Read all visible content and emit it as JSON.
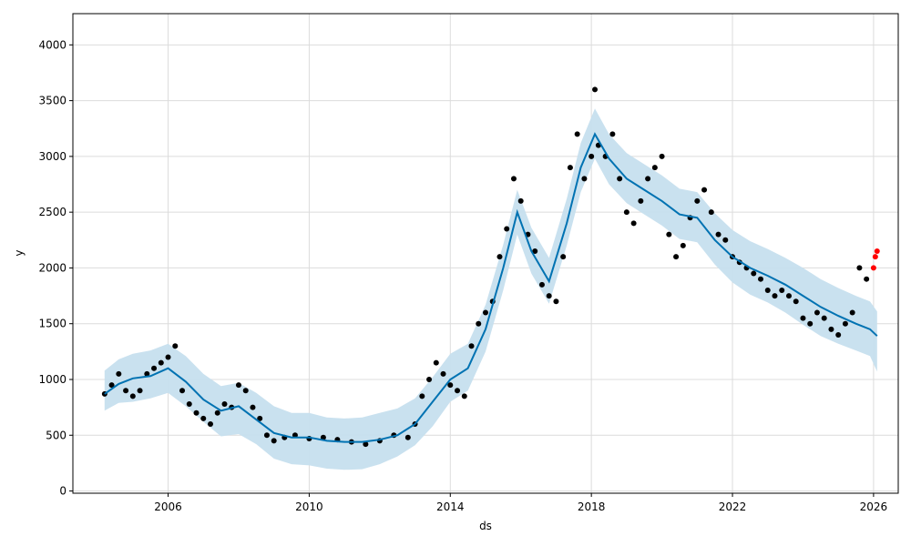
{
  "chart_data": {
    "type": "line",
    "title": "",
    "xlabel": "ds",
    "ylabel": "y",
    "xlim": [
      2003.3,
      2026.7
    ],
    "ylim": [
      -20,
      4280
    ],
    "xticks": [
      2006,
      2010,
      2014,
      2018,
      2022,
      2026
    ],
    "yticks": [
      0,
      500,
      1000,
      1500,
      2000,
      2500,
      3000,
      3500,
      4000
    ],
    "grid": true,
    "legend": "none",
    "colors": {
      "forecast_line": "#0072B2",
      "uncertainty_band": "#c6dfee",
      "observed_points": "#000000",
      "holdout_points": "#ff0000"
    },
    "forecast": {
      "x": [
        2004.2,
        2004.6,
        2005.0,
        2005.5,
        2006.0,
        2006.5,
        2007.0,
        2007.5,
        2008.0,
        2008.5,
        2009.0,
        2009.5,
        2010.0,
        2010.5,
        2011.0,
        2011.5,
        2012.0,
        2012.5,
        2013.0,
        2013.5,
        2014.0,
        2014.5,
        2015.0,
        2015.5,
        2015.9,
        2016.3,
        2016.8,
        2017.3,
        2017.7,
        2018.1,
        2018.5,
        2019.0,
        2019.5,
        2020.0,
        2020.5,
        2021.0,
        2021.5,
        2022.0,
        2022.5,
        2023.0,
        2023.5,
        2024.0,
        2024.5,
        2025.0,
        2025.5,
        2025.9,
        2026.1
      ],
      "yhat": [
        870,
        960,
        1010,
        1030,
        1100,
        980,
        820,
        720,
        760,
        640,
        520,
        480,
        480,
        450,
        440,
        440,
        460,
        500,
        600,
        800,
        1000,
        1100,
        1450,
        2000,
        2500,
        2150,
        1880,
        2400,
        2900,
        3200,
        2980,
        2800,
        2700,
        2600,
        2480,
        2450,
        2250,
        2100,
        2000,
        1930,
        1850,
        1750,
        1650,
        1570,
        1500,
        1450,
        1390
      ],
      "lower": [
        720,
        790,
        800,
        830,
        880,
        760,
        620,
        490,
        510,
        420,
        290,
        240,
        230,
        200,
        190,
        195,
        240,
        310,
        410,
        580,
        800,
        900,
        1250,
        1800,
        2300,
        1950,
        1680,
        2200,
        2680,
        2980,
        2750,
        2580,
        2480,
        2380,
        2260,
        2230,
        2030,
        1870,
        1760,
        1690,
        1600,
        1490,
        1390,
        1320,
        1260,
        1210,
        1070
      ],
      "upper": [
        1080,
        1180,
        1230,
        1260,
        1320,
        1210,
        1050,
        940,
        970,
        880,
        760,
        700,
        700,
        660,
        650,
        660,
        700,
        740,
        830,
        1020,
        1230,
        1320,
        1670,
        2210,
        2700,
        2360,
        2090,
        2620,
        3120,
        3430,
        3200,
        3030,
        2930,
        2830,
        2710,
        2680,
        2490,
        2340,
        2240,
        2170,
        2090,
        2000,
        1900,
        1820,
        1750,
        1700,
        1610
      ]
    },
    "observed": {
      "x": [
        2004.2,
        2004.4,
        2004.6,
        2004.8,
        2005.0,
        2005.2,
        2005.4,
        2005.6,
        2005.8,
        2006.0,
        2006.2,
        2006.4,
        2006.6,
        2006.8,
        2007.0,
        2007.2,
        2007.4,
        2007.6,
        2007.8,
        2008.0,
        2008.2,
        2008.4,
        2008.6,
        2008.8,
        2009.0,
        2009.3,
        2009.6,
        2010.0,
        2010.4,
        2010.8,
        2011.2,
        2011.6,
        2012.0,
        2012.4,
        2012.8,
        2013.0,
        2013.2,
        2013.4,
        2013.6,
        2013.8,
        2014.0,
        2014.2,
        2014.4,
        2014.6,
        2014.8,
        2015.0,
        2015.2,
        2015.4,
        2015.6,
        2015.8,
        2016.0,
        2016.2,
        2016.4,
        2016.6,
        2016.8,
        2017.0,
        2017.2,
        2017.4,
        2017.6,
        2017.8,
        2018.0,
        2018.1,
        2018.2,
        2018.4,
        2018.6,
        2018.8,
        2019.0,
        2019.2,
        2019.4,
        2019.6,
        2019.8,
        2020.0,
        2020.2,
        2020.4,
        2020.6,
        2020.8,
        2021.0,
        2021.2,
        2021.4,
        2021.6,
        2021.8,
        2022.0,
        2022.2,
        2022.4,
        2022.6,
        2022.8,
        2023.0,
        2023.2,
        2023.4,
        2023.6,
        2023.8,
        2024.0,
        2024.2,
        2024.4,
        2024.6,
        2024.8,
        2025.0,
        2025.2,
        2025.4,
        2025.6,
        2025.8
      ],
      "y": [
        870,
        950,
        1050,
        900,
        850,
        900,
        1050,
        1100,
        1150,
        1200,
        1300,
        900,
        780,
        700,
        650,
        600,
        700,
        780,
        750,
        950,
        900,
        750,
        650,
        500,
        450,
        480,
        500,
        470,
        480,
        460,
        440,
        420,
        450,
        500,
        480,
        600,
        850,
        1000,
        1150,
        1050,
        950,
        900,
        850,
        1300,
        1500,
        1600,
        1700,
        2100,
        2350,
        2800,
        2600,
        2300,
        2150,
        1850,
        1750,
        1700,
        2100,
        2900,
        3200,
        2800,
        3000,
        3600,
        3100,
        3000,
        3200,
        2800,
        2500,
        2400,
        2600,
        2800,
        2900,
        3000,
        2300,
        2100,
        2200,
        2450,
        2600,
        2700,
        2500,
        2300,
        2250,
        2100,
        2050,
        2000,
        1950,
        1900,
        1800,
        1750,
        1800,
        1750,
        1700,
        1550,
        1500,
        1600,
        1550,
        1450,
        1400,
        1500,
        1600,
        2000,
        1900
      ]
    },
    "holdout": {
      "x": [
        2026.0,
        2026.05,
        2026.1
      ],
      "y": [
        2000,
        2100,
        2150
      ]
    }
  }
}
